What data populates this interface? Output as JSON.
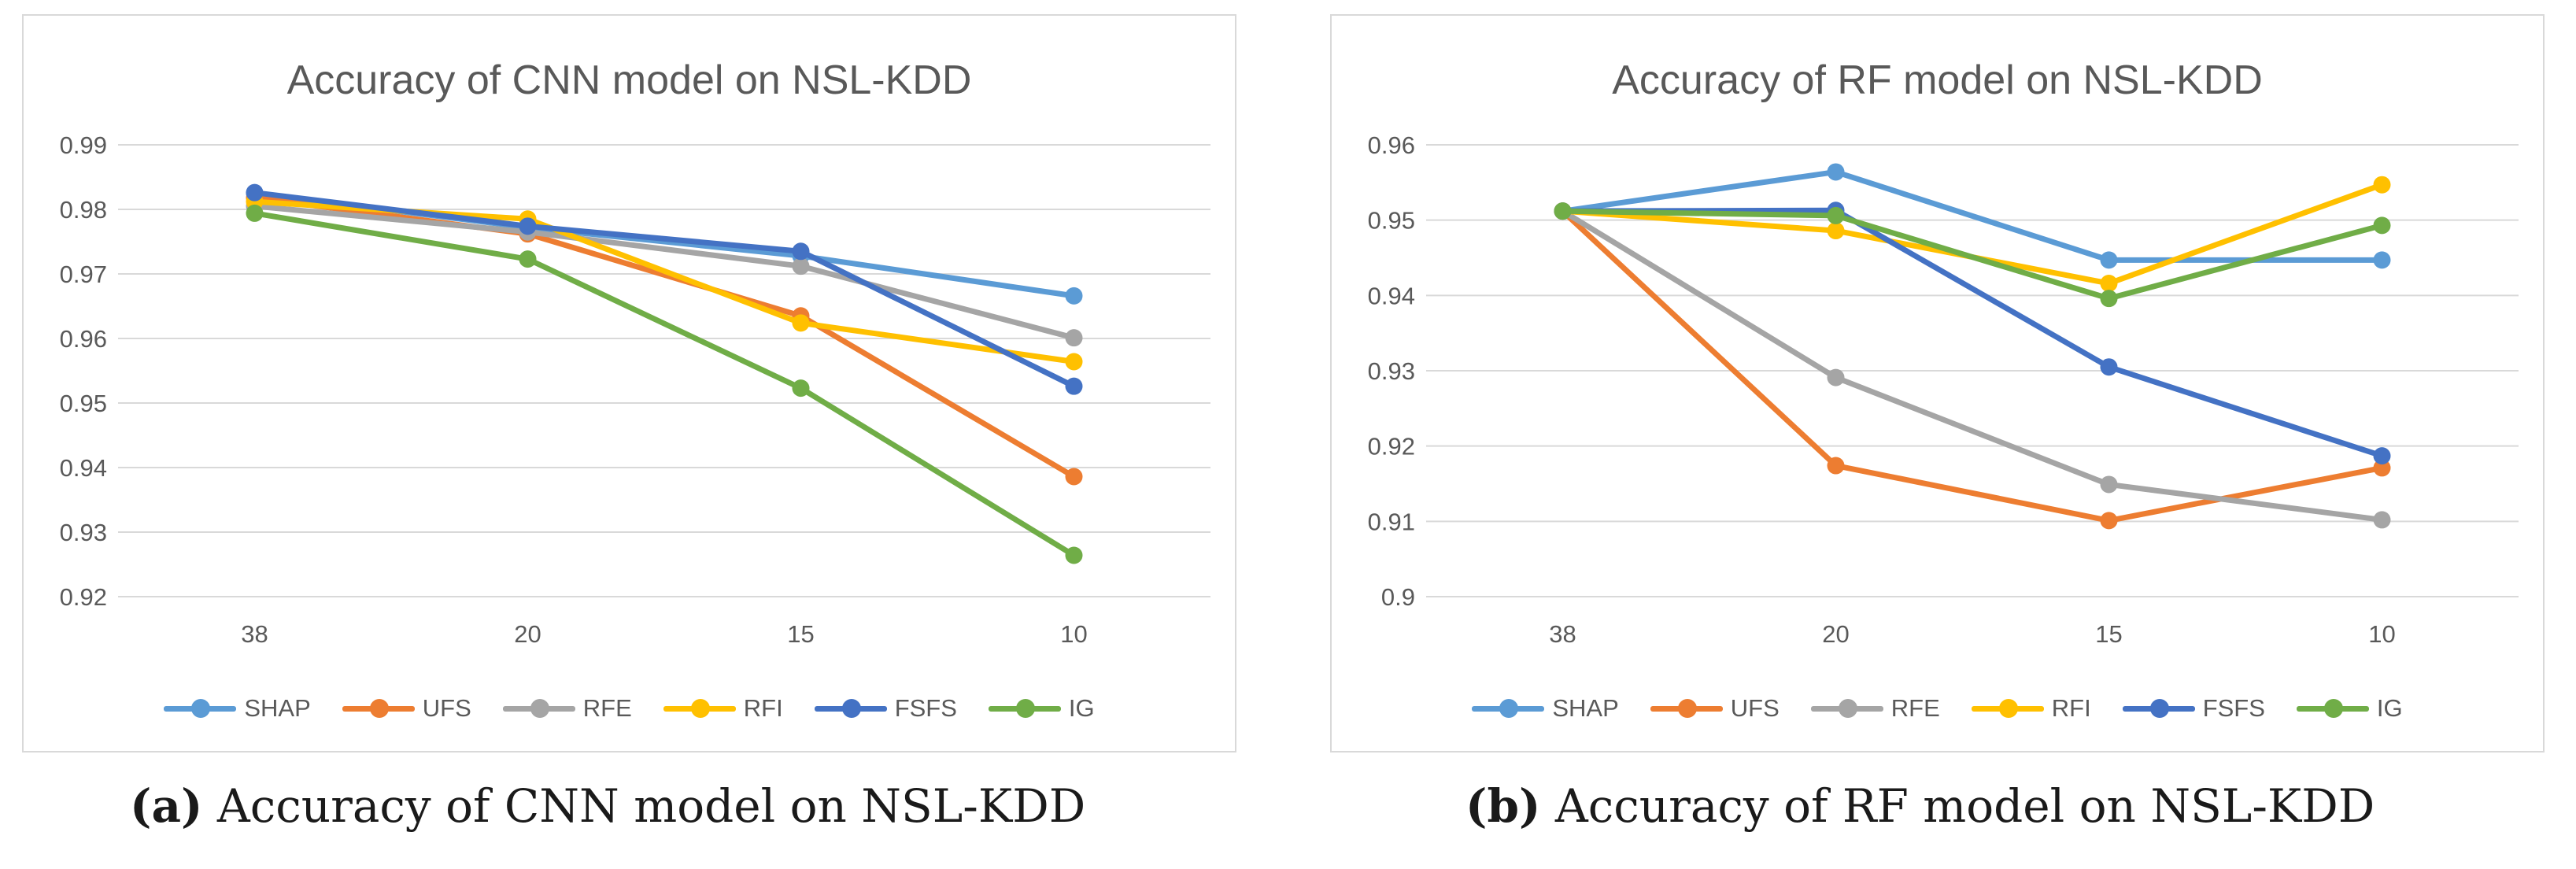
{
  "chart_data": [
    {
      "type": "line",
      "title": "Accuracy of CNN model on NSL-KDD",
      "categories": [
        "38",
        "20",
        "15",
        "10"
      ],
      "ylim": [
        0.92,
        0.99
      ],
      "yticks": [
        "0.92",
        "0.93",
        "0.94",
        "0.95",
        "0.96",
        "0.97",
        "0.98",
        "0.99"
      ],
      "grid": true,
      "legend": "bottom",
      "series": [
        {
          "name": "SHAP",
          "color": "#5b9bd5",
          "values": [
            0.9825,
            0.9772,
            0.9728,
            0.9666
          ]
        },
        {
          "name": "UFS",
          "color": "#ed7d31",
          "values": [
            0.9818,
            0.9762,
            0.9635,
            0.9386
          ]
        },
        {
          "name": "RFE",
          "color": "#a5a5a5",
          "values": [
            0.9805,
            0.9765,
            0.9712,
            0.9601
          ]
        },
        {
          "name": "RFI",
          "color": "#ffc000",
          "values": [
            0.9812,
            0.9785,
            0.9624,
            0.9564
          ]
        },
        {
          "name": "FSFS",
          "color": "#4472c4",
          "values": [
            0.9826,
            0.9774,
            0.9735,
            0.9526
          ]
        },
        {
          "name": "IG",
          "color": "#70ad47",
          "values": [
            0.9794,
            0.9723,
            0.9523,
            0.9264
          ]
        }
      ]
    },
    {
      "type": "line",
      "title": "Accuracy of RF model on NSL-KDD",
      "categories": [
        "38",
        "20",
        "15",
        "10"
      ],
      "ylim": [
        0.9,
        0.96
      ],
      "yticks": [
        "0.9",
        "0.91",
        "0.92",
        "0.93",
        "0.94",
        "0.95",
        "0.96"
      ],
      "grid": true,
      "legend": "bottom",
      "series": [
        {
          "name": "SHAP",
          "color": "#5b9bd5",
          "values": [
            0.9512,
            0.9564,
            0.9447,
            0.9447
          ]
        },
        {
          "name": "UFS",
          "color": "#ed7d31",
          "values": [
            0.9512,
            0.9174,
            0.9101,
            0.9171
          ]
        },
        {
          "name": "RFE",
          "color": "#a5a5a5",
          "values": [
            0.9512,
            0.9291,
            0.9149,
            0.9102
          ]
        },
        {
          "name": "RFI",
          "color": "#ffc000",
          "values": [
            0.9512,
            0.9486,
            0.9416,
            0.9547
          ]
        },
        {
          "name": "FSFS",
          "color": "#4472c4",
          "values": [
            0.9512,
            0.9513,
            0.9305,
            0.9187
          ]
        },
        {
          "name": "IG",
          "color": "#70ad47",
          "values": [
            0.9512,
            0.9506,
            0.9396,
            0.9493
          ]
        }
      ]
    }
  ],
  "captions": [
    {
      "label": "(a)",
      "text": " Accuracy of CNN model on NSL-KDD"
    },
    {
      "label": "(b)",
      "text": " Accuracy of RF model on NSL-KDD"
    }
  ]
}
